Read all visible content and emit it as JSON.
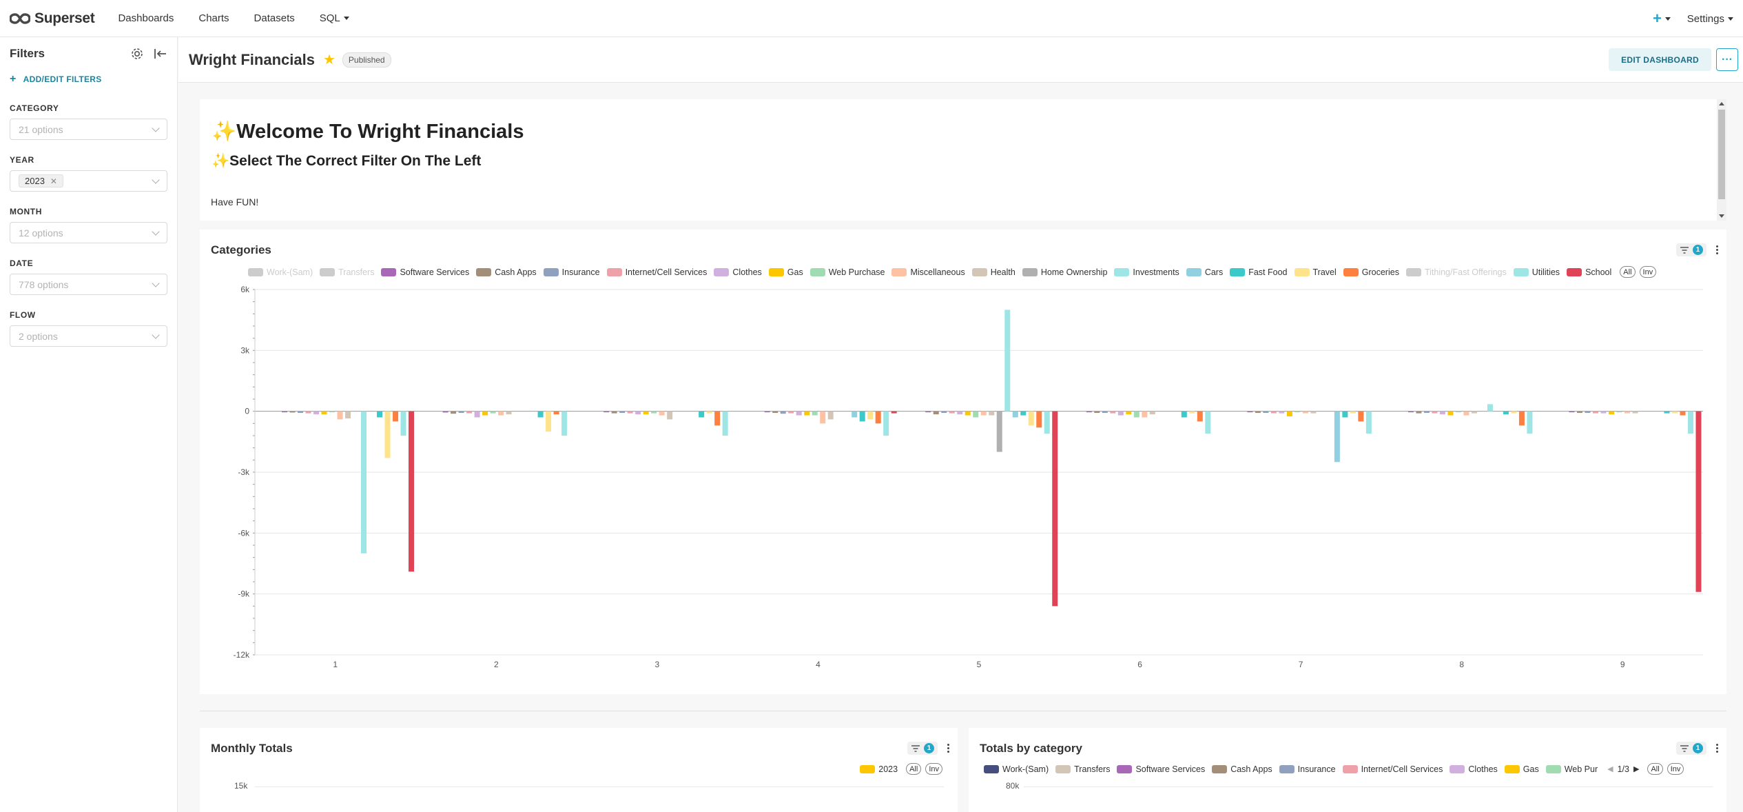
{
  "app": {
    "brand": "Superset",
    "nav": [
      "Dashboards",
      "Charts",
      "Datasets",
      "SQL"
    ],
    "plus_label": "+",
    "settings_label": "Settings"
  },
  "filters": {
    "title": "Filters",
    "add_edit": "ADD/EDIT FILTERS",
    "items": [
      {
        "label": "CATEGORY",
        "placeholder": "21 options"
      },
      {
        "label": "YEAR",
        "value": "2023"
      },
      {
        "label": "MONTH",
        "placeholder": "12 options"
      },
      {
        "label": "DATE",
        "placeholder": "778 options"
      },
      {
        "label": "FLOW",
        "placeholder": "2 options"
      }
    ]
  },
  "dashboard": {
    "title": "Wright Financials",
    "status": "Published",
    "edit_label": "EDIT DASHBOARD",
    "more_label": "···"
  },
  "markdown": {
    "h1": "✨Welcome To Wright Financials",
    "h2": "✨Select The Correct Filter On The Left",
    "p": "Have FUN!"
  },
  "categories_chart": {
    "title": "Categories",
    "filter_count": "1",
    "legend_all": "All",
    "legend_inv": "Inv"
  },
  "chart_data": [
    {
      "type": "bar",
      "title": "Categories",
      "categories": [
        "1",
        "2",
        "3",
        "4",
        "5",
        "6",
        "7",
        "8",
        "9"
      ],
      "ylim": [
        -12000,
        6000
      ],
      "y_ticks": [
        "6k",
        "3k",
        "0",
        "-3k",
        "-6k",
        "-9k",
        "-12k"
      ],
      "legend_position": "top",
      "grid": true,
      "series": [
        {
          "name": "Work-(Sam)",
          "color": "#cccccc",
          "hidden": true,
          "values": [
            0,
            0,
            0,
            0,
            0,
            0,
            0,
            0,
            0
          ]
        },
        {
          "name": "Transfers",
          "color": "#cccccc",
          "hidden": true,
          "values": [
            0,
            0,
            0,
            0,
            0,
            0,
            0,
            0,
            0
          ]
        },
        {
          "name": "Software Services",
          "color": "#a868b7",
          "values": [
            -50,
            -60,
            -50,
            -50,
            -50,
            -50,
            -50,
            -50,
            -50
          ]
        },
        {
          "name": "Cash Apps",
          "color": "#a38f79",
          "values": [
            -60,
            -120,
            -100,
            -80,
            -150,
            -80,
            -80,
            -100,
            -80
          ]
        },
        {
          "name": "Insurance",
          "color": "#8fa1bf",
          "values": [
            -80,
            -80,
            -80,
            -120,
            -80,
            -80,
            -80,
            -80,
            -80
          ]
        },
        {
          "name": "Internet/Cell Services",
          "color": "#efa1aa",
          "values": [
            -100,
            -100,
            -100,
            -100,
            -100,
            -100,
            -100,
            -100,
            -100
          ]
        },
        {
          "name": "Clothes",
          "color": "#d1b0e0",
          "values": [
            -150,
            -300,
            -150,
            -200,
            -150,
            -200,
            -100,
            -150,
            -100
          ]
        },
        {
          "name": "Gas",
          "color": "#fcc700",
          "values": [
            -150,
            -200,
            -150,
            -200,
            -200,
            -150,
            -250,
            -200,
            -150
          ]
        },
        {
          "name": "Web Purchase",
          "color": "#a1dbb2",
          "values": [
            -50,
            -100,
            -100,
            -200,
            -300,
            -300,
            -50,
            -50,
            -50
          ]
        },
        {
          "name": "Miscellaneous",
          "color": "#fdc1a3",
          "values": [
            -400,
            -200,
            -200,
            -600,
            -200,
            -300,
            -100,
            -200,
            -100
          ]
        },
        {
          "name": "Health",
          "color": "#d3c6b6",
          "values": [
            -350,
            -150,
            -400,
            -400,
            -200,
            -150,
            -100,
            -100,
            -100
          ]
        },
        {
          "name": "Home Ownership",
          "color": "#b0b0b0",
          "values": [
            0,
            0,
            0,
            0,
            -2000,
            0,
            0,
            0,
            0
          ]
        },
        {
          "name": "Investments",
          "color": "#9ee5e5",
          "values": [
            -7000,
            0,
            0,
            0,
            5000,
            0,
            0,
            350,
            0
          ]
        },
        {
          "name": "Cars",
          "color": "#90d0e0",
          "values": [
            0,
            0,
            0,
            -300,
            -300,
            0,
            -2500,
            0,
            0
          ]
        },
        {
          "name": "Fast Food",
          "color": "#3bc9c9",
          "values": [
            -300,
            -300,
            -300,
            -500,
            -200,
            -300,
            -300,
            -150,
            -100
          ]
        },
        {
          "name": "Travel",
          "color": "#ffe38a",
          "values": [
            -2300,
            -1000,
            -100,
            -400,
            -700,
            -100,
            -100,
            -100,
            -100
          ]
        },
        {
          "name": "Groceries",
          "color": "#fe8041",
          "values": [
            -500,
            -150,
            -700,
            -600,
            -800,
            -500,
            -500,
            -700,
            -200
          ]
        },
        {
          "name": "Tithing/Fast Offerings",
          "color": "#cccccc",
          "hidden": true,
          "values": [
            0,
            0,
            0,
            0,
            0,
            0,
            0,
            0,
            0
          ]
        },
        {
          "name": "Utilities",
          "color": "#9ee5e5",
          "values": [
            -1200,
            -1200,
            -1200,
            -1200,
            -1100,
            -1100,
            -1100,
            -1100,
            -1100
          ]
        },
        {
          "name": "School",
          "color": "#e04355",
          "values": [
            -7900,
            0,
            0,
            -100,
            -9600,
            0,
            0,
            0,
            -8900
          ]
        }
      ]
    },
    {
      "type": "bar",
      "title": "Monthly Totals",
      "y_ticks": [
        "15k"
      ],
      "series": [
        {
          "name": "2023",
          "color": "#fcc700",
          "values": []
        }
      ]
    },
    {
      "type": "bar",
      "title": "Totals by category",
      "y_ticks": [
        "80k"
      ],
      "legend": [
        "Work-(Sam)",
        "Transfers",
        "Software Services",
        "Cash Apps",
        "Insurance",
        "Internet/Cell Services",
        "Clothes",
        "Gas",
        "Web Pur"
      ],
      "legend_colors": [
        "#454e7c",
        "#d3c6b6",
        "#a868b7",
        "#a38f79",
        "#8fa1bf",
        "#efa1aa",
        "#d1b0e0",
        "#fcc700",
        "#a1dbb2"
      ],
      "legend_page": "1/3"
    }
  ],
  "monthly_totals": {
    "title": "Monthly Totals",
    "filter_count": "1",
    "legend": "2023",
    "legend_all": "All",
    "legend_inv": "Inv",
    "ytick": "15k"
  },
  "totals_by_category": {
    "title": "Totals by category",
    "filter_count": "1",
    "legend_page": "1/3",
    "legend_all": "All",
    "legend_inv": "Inv",
    "ytick": "80k"
  }
}
